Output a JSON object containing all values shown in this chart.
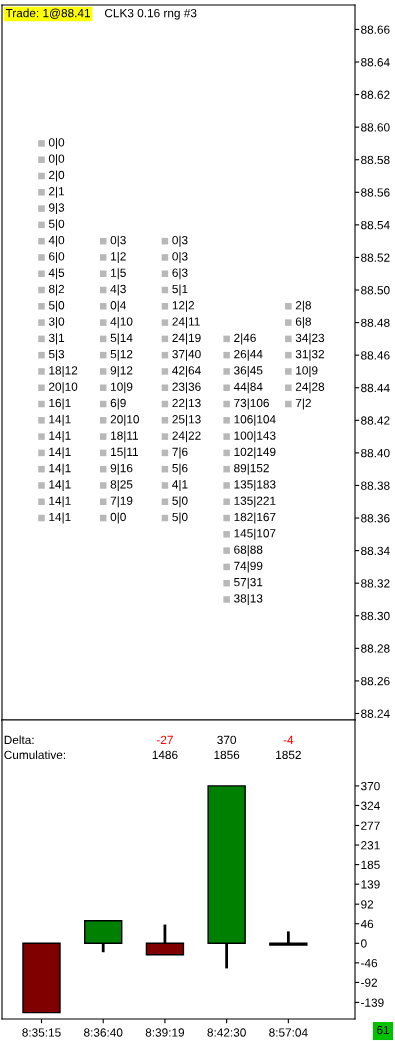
{
  "chart_data": [
    {
      "type": "scatter",
      "title": "Trade: 1@88.41",
      "subtitle": "CLK3 0.16 rng #3",
      "categories": [
        "8:35:15",
        "8:36:40",
        "8:39:19",
        "8:42:30",
        "8:57:04"
      ],
      "tick_labels": "y",
      "marker": "square",
      "ylim": [
        88.236,
        88.675
      ],
      "yticks": [
        {
          "value": 88.24,
          "label": "88.24"
        },
        {
          "value": 88.26,
          "label": "88.26"
        },
        {
          "value": 88.28,
          "label": "88.28"
        },
        {
          "value": 88.3,
          "label": "88.30"
        },
        {
          "value": 88.32,
          "label": "88.32"
        },
        {
          "value": 88.34,
          "label": "88.34"
        },
        {
          "value": 88.36,
          "label": "88.36"
        },
        {
          "value": 88.38,
          "label": "88.38"
        },
        {
          "value": 88.4,
          "label": "88.40"
        },
        {
          "value": 88.42,
          "label": "88.42"
        },
        {
          "value": 88.44,
          "label": "88.44"
        },
        {
          "value": 88.46,
          "label": "88.46"
        },
        {
          "value": 88.48,
          "label": "88.48"
        },
        {
          "value": 88.5,
          "label": "88.50"
        },
        {
          "value": 88.52,
          "label": "88.52"
        },
        {
          "value": 88.54,
          "label": "88.54"
        },
        {
          "value": 88.56,
          "label": "88.56"
        },
        {
          "value": 88.58,
          "label": "88.58"
        },
        {
          "value": 88.6,
          "label": "88.60"
        },
        {
          "value": 88.62,
          "label": "88.62"
        },
        {
          "value": 88.64,
          "label": "88.64"
        },
        {
          "value": 88.66,
          "label": "88.66"
        }
      ],
      "series": [
        {
          "x": [
            "8:35:15",
            "8:35:15",
            "8:35:15",
            "8:35:15",
            "8:35:15",
            "8:35:15",
            "8:35:15",
            "8:35:15",
            "8:35:15",
            "8:35:15",
            "8:35:15",
            "8:35:15",
            "8:35:15",
            "8:35:15",
            "8:35:15",
            "8:35:15",
            "8:35:15",
            "8:35:15",
            "8:35:15",
            "8:35:15",
            "8:35:15",
            "8:35:15",
            "8:35:15",
            "8:35:15"
          ],
          "values": [
            88.59,
            88.58,
            88.57,
            88.56,
            88.55,
            88.54,
            88.53,
            88.52,
            88.51,
            88.5,
            88.49,
            88.48,
            88.47,
            88.46,
            88.45,
            88.44,
            88.43,
            88.42,
            88.41,
            88.4,
            88.39,
            88.38,
            88.37,
            88.36
          ],
          "value_labels": [
            "0|0",
            "0|0",
            "2|0",
            "2|1",
            "9|3",
            "5|0",
            "4|0",
            "6|0",
            "4|5",
            "8|2",
            "5|0",
            "3|0",
            "3|1",
            "5|3",
            "18|12",
            "20|10",
            "16|1",
            "14|1",
            "14|1",
            "14|1",
            "14|1",
            "14|1",
            "14|1",
            "14|1"
          ]
        },
        {
          "x": [
            "8:36:40",
            "8:36:40",
            "8:36:40",
            "8:36:40",
            "8:36:40",
            "8:36:40",
            "8:36:40",
            "8:36:40",
            "8:36:40",
            "8:36:40",
            "8:36:40",
            "8:36:40",
            "8:36:40",
            "8:36:40",
            "8:36:40",
            "8:36:40",
            "8:36:40",
            "8:36:40"
          ],
          "values": [
            88.53,
            88.52,
            88.51,
            88.5,
            88.49,
            88.48,
            88.47,
            88.46,
            88.45,
            88.44,
            88.43,
            88.42,
            88.41,
            88.4,
            88.39,
            88.38,
            88.37,
            88.36
          ],
          "value_labels": [
            "0|3",
            "1|2",
            "1|5",
            "4|3",
            "0|4",
            "4|10",
            "5|14",
            "5|12",
            "9|12",
            "10|9",
            "6|9",
            "20|10",
            "18|11",
            "15|11",
            "9|16",
            "8|25",
            "7|19",
            "0|0"
          ]
        },
        {
          "x": [
            "8:39:19",
            "8:39:19",
            "8:39:19",
            "8:39:19",
            "8:39:19",
            "8:39:19",
            "8:39:19",
            "8:39:19",
            "8:39:19",
            "8:39:19",
            "8:39:19",
            "8:39:19",
            "8:39:19",
            "8:39:19",
            "8:39:19",
            "8:39:19",
            "8:39:19",
            "8:39:19"
          ],
          "values": [
            88.53,
            88.52,
            88.51,
            88.5,
            88.49,
            88.48,
            88.47,
            88.46,
            88.45,
            88.44,
            88.43,
            88.42,
            88.41,
            88.4,
            88.39,
            88.38,
            88.37,
            88.36
          ],
          "value_labels": [
            "0|3",
            "0|3",
            "6|3",
            "5|1",
            "12|2",
            "24|11",
            "24|19",
            "37|40",
            "42|64",
            "23|36",
            "22|13",
            "25|13",
            "24|22",
            "7|6",
            "5|6",
            "4|1",
            "5|0",
            "5|0"
          ]
        },
        {
          "x": [
            "8:42:30",
            "8:42:30",
            "8:42:30",
            "8:42:30",
            "8:42:30",
            "8:42:30",
            "8:42:30",
            "8:42:30",
            "8:42:30",
            "8:42:30",
            "8:42:30",
            "8:42:30",
            "8:42:30",
            "8:42:30",
            "8:42:30",
            "8:42:30",
            "8:42:30"
          ],
          "values": [
            88.47,
            88.46,
            88.45,
            88.44,
            88.43,
            88.42,
            88.41,
            88.4,
            88.39,
            88.38,
            88.37,
            88.36,
            88.35,
            88.34,
            88.33,
            88.32,
            88.31
          ],
          "value_labels": [
            "2|46",
            "26|44",
            "36|45",
            "44|84",
            "73|106",
            "106|104",
            "100|143",
            "102|149",
            "89|152",
            "135|183",
            "135|221",
            "182|167",
            "145|107",
            "68|88",
            "74|99",
            "57|31",
            "38|13"
          ]
        },
        {
          "x": [
            "8:57:04",
            "8:57:04",
            "8:57:04",
            "8:57:04",
            "8:57:04",
            "8:57:04",
            "8:57:04"
          ],
          "values": [
            88.49,
            88.48,
            88.47,
            88.46,
            88.45,
            88.44,
            88.43
          ],
          "value_labels": [
            "2|8",
            "6|8",
            "34|23",
            "31|32",
            "10|9",
            "24|28",
            "7|2"
          ]
        }
      ]
    },
    {
      "type": "candlestick",
      "categories": [
        "8:35:15",
        "8:36:40",
        "8:39:19",
        "8:42:30",
        "8:57:04"
      ],
      "ohlc": [
        [
          0,
          0,
          -163,
          -163
        ],
        [
          0,
          53,
          -21,
          53
        ],
        [
          0,
          44,
          -27,
          -27
        ],
        [
          0,
          370,
          -59,
          370
        ],
        [
          0,
          28,
          -4,
          -4
        ]
      ],
      "colors": [
        "#800000",
        "#008000",
        "#800000",
        "#008000",
        "#000000"
      ],
      "value_labels": [
        null,
        null,
        "-27",
        "370",
        "-4"
      ],
      "ylim": [
        -178,
        525
      ],
      "yticks": [
        -139,
        -92,
        -46,
        0,
        46,
        92,
        139,
        185,
        231,
        277,
        324,
        370
      ],
      "annotations": [
        "Delta:",
        "Cumulative:",
        "1486",
        "1856",
        "1852",
        "61"
      ]
    }
  ]
}
